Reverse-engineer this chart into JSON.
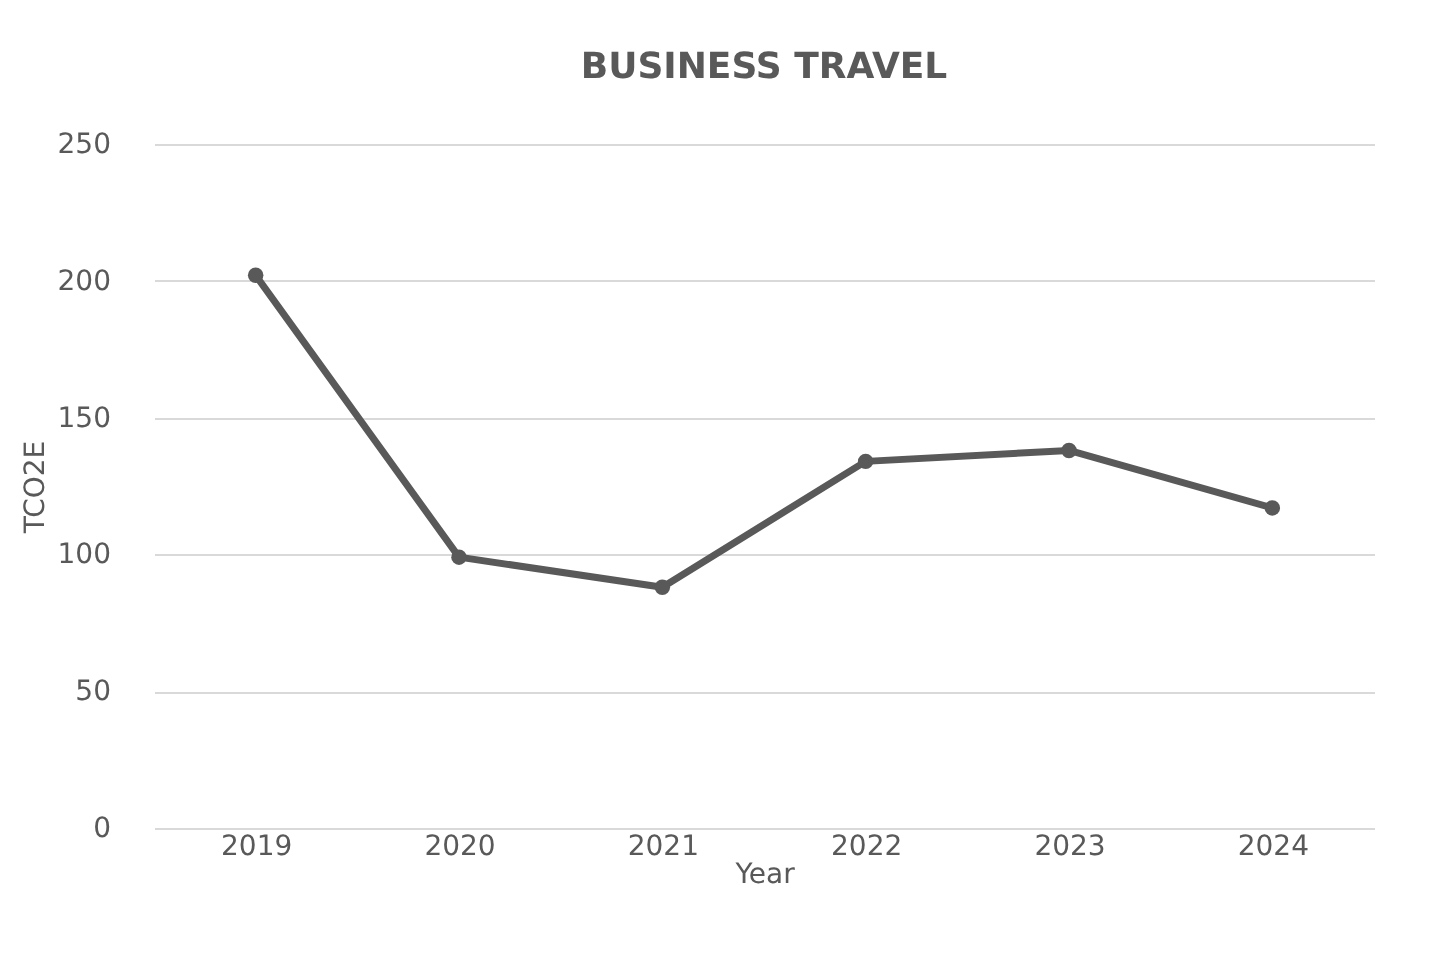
{
  "chart_data": {
    "type": "line",
    "title": "BUSINESS TRAVEL",
    "xlabel": "Year",
    "ylabel": "TCO2E",
    "categories": [
      "2019",
      "2020",
      "2021",
      "2022",
      "2023",
      "2024"
    ],
    "series": [
      {
        "color": "#595959",
        "values": [
          202,
          99,
          88,
          134,
          138,
          117
        ]
      }
    ],
    "ylim": [
      0,
      250
    ],
    "yticks": [
      0,
      50,
      100,
      150,
      200,
      250
    ],
    "grid": "y",
    "marker": "circle",
    "line_style": "solid",
    "legend": false
  }
}
